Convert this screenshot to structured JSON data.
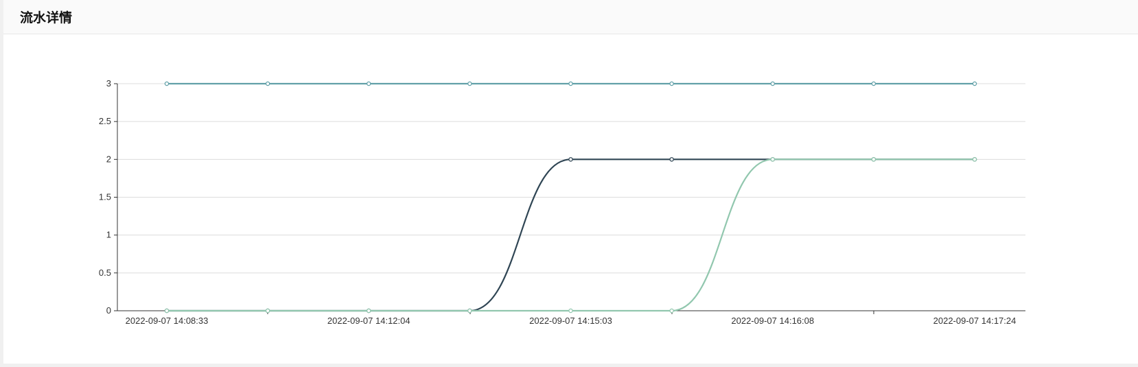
{
  "header": {
    "title": "流水详情"
  },
  "chart_data": {
    "type": "line",
    "x": [
      "2022-09-07 14:08:33",
      "",
      "2022-09-07 14:12:04",
      "",
      "2022-09-07 14:15:03",
      "",
      "2022-09-07 14:16:08",
      "",
      "2022-09-07 14:17:24"
    ],
    "x_ticks_shown": [
      "2022-09-07 14:08:33",
      "2022-09-07 14:12:04",
      "2022-09-07 14:15:03",
      "2022-09-07 14:16:08",
      "2022-09-07 14:17:24"
    ],
    "ylim": [
      0,
      3
    ],
    "yticks": [
      "0",
      "0.5",
      "1",
      "1.5",
      "2",
      "2.5",
      "3"
    ],
    "grid": true,
    "smooth": true,
    "series": [
      {
        "values": [
          3,
          3,
          3,
          3,
          3,
          3,
          3,
          3,
          3
        ],
        "color": "#61a0a8"
      },
      {
        "values": [
          0,
          0,
          0,
          0,
          2,
          2,
          2,
          2,
          2
        ],
        "color": "#2f4554"
      },
      {
        "values": [
          0,
          0,
          0,
          0,
          0,
          0,
          2,
          2,
          2
        ],
        "color": "#91c7ae"
      }
    ]
  }
}
